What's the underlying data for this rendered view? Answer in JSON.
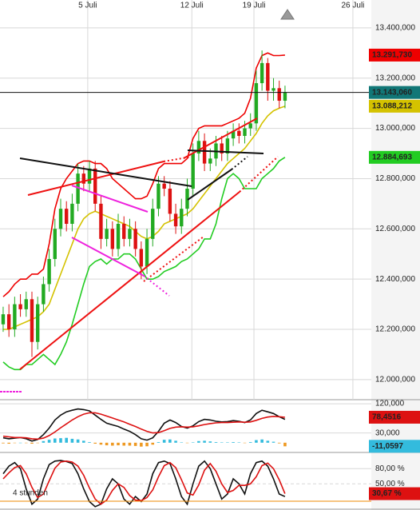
{
  "chart_data": [
    {
      "type": "candlestick",
      "xlim": [
        -0.55,
        64
      ],
      "xticks": [
        {
          "value": 14.7,
          "label": "5 Juli"
        },
        {
          "value": 32.8,
          "label": "12 Juli"
        },
        {
          "value": 43.6,
          "label": "19 Juli"
        },
        {
          "value": 60.8,
          "label": "26 Juli"
        }
      ],
      "ylim": [
        11920,
        13511
      ],
      "yticks": [
        {
          "value": 12000,
          "label": "12.000,000"
        },
        {
          "value": 12200,
          "label": "12.200,000"
        },
        {
          "value": 12400,
          "label": "12.400,000"
        },
        {
          "value": 12600,
          "label": "12.600,000"
        },
        {
          "value": 12800,
          "label": "12.800,000"
        },
        {
          "value": 13000,
          "label": "13.000,000"
        },
        {
          "value": 13200,
          "label": "13.200,000"
        },
        {
          "value": 13400,
          "label": "13.400,000"
        }
      ],
      "grid": true,
      "up_color": "#22aa22",
      "down_color": "#dd1111",
      "open": [
        12220,
        12260,
        12200,
        12300,
        12280,
        12320,
        12150,
        12300,
        12380,
        12480,
        12600,
        12680,
        12620,
        12700,
        12820,
        12780,
        12840,
        12700,
        12560,
        12600,
        12520,
        12620,
        12560,
        12600,
        12520,
        12450,
        12560,
        12680,
        12780,
        12760,
        12660,
        12610,
        12680,
        12760,
        12900,
        12950,
        12860,
        12880,
        12940,
        12900,
        12960,
        12990,
        12970,
        13000,
        13020,
        13180,
        13260,
        13150,
        13160,
        13110
      ],
      "high": [
        12290,
        12300,
        12330,
        12340,
        12350,
        12350,
        12330,
        12410,
        12520,
        12640,
        12720,
        12710,
        12740,
        12860,
        12850,
        12870,
        12870,
        12730,
        12640,
        12630,
        12660,
        12650,
        12640,
        12630,
        12550,
        12600,
        12720,
        12810,
        12810,
        12790,
        12700,
        12720,
        12800,
        12940,
        12990,
        12980,
        12920,
        12970,
        12970,
        12990,
        13020,
        13020,
        13030,
        13060,
        13230,
        13310,
        13280,
        13200,
        13190,
        13170
      ],
      "low": [
        12190,
        12170,
        12170,
        12250,
        12250,
        12090,
        12120,
        12270,
        12350,
        12450,
        12570,
        12590,
        12590,
        12670,
        12750,
        12750,
        12670,
        12520,
        12530,
        12490,
        12490,
        12530,
        12530,
        12490,
        12400,
        12420,
        12530,
        12650,
        12730,
        12630,
        12580,
        12580,
        12650,
        12730,
        12870,
        12830,
        12830,
        12850,
        12870,
        12870,
        12930,
        12940,
        12940,
        12970,
        12990,
        13150,
        13110,
        13110,
        13080,
        13080
      ],
      "close": [
        12260,
        12200,
        12300,
        12280,
        12320,
        12150,
        12300,
        12380,
        12480,
        12600,
        12680,
        12620,
        12700,
        12820,
        12780,
        12840,
        12700,
        12560,
        12600,
        12520,
        12620,
        12560,
        12600,
        12520,
        12450,
        12560,
        12680,
        12780,
        12760,
        12660,
        12610,
        12680,
        12760,
        12900,
        12950,
        12860,
        12880,
        12940,
        12900,
        12960,
        12990,
        12970,
        13000,
        13020,
        13180,
        13260,
        13150,
        13160,
        13110,
        13143.06
      ],
      "last_label": "13.143,060",
      "last_color": "#117777",
      "series": [
        {
          "color": "#ee0000",
          "last_label": "13.291,730",
          "values": [
            12330,
            12350,
            12380,
            12400,
            12400,
            12420,
            12420,
            12440,
            12540,
            12680,
            12760,
            12800,
            12830,
            12860,
            12870,
            12870,
            12860,
            12860,
            12840,
            12800,
            12780,
            12760,
            12740,
            12720,
            12720,
            12730,
            12780,
            12840,
            12860,
            12860,
            12860,
            12860,
            12880,
            12960,
            13000,
            13010,
            13010,
            13010,
            13010,
            13020,
            13030,
            13040,
            13060,
            13120,
            13240,
            13290,
            13300,
            13290,
            13290,
            13291.73
          ]
        },
        {
          "color": "#d4c200",
          "last_label": "13.088,212",
          "values": [
            12200,
            12200,
            12210,
            12220,
            12230,
            12240,
            12250,
            12270,
            12300,
            12360,
            12420,
            12480,
            12540,
            12600,
            12640,
            12660,
            12670,
            12660,
            12650,
            12640,
            12630,
            12620,
            12610,
            12590,
            12570,
            12560,
            12570,
            12590,
            12620,
            12630,
            12640,
            12650,
            12660,
            12680,
            12710,
            12740,
            12770,
            12800,
            12830,
            12860,
            12880,
            12900,
            12920,
            12950,
            12980,
            13020,
            13050,
            13070,
            13080,
            13088.212
          ]
        },
        {
          "color": "#22cc22",
          "last_label": "12.884,693",
          "values": [
            12070,
            12050,
            12040,
            12040,
            12060,
            12060,
            12080,
            12100,
            12080,
            12060,
            12100,
            12150,
            12220,
            12300,
            12380,
            12450,
            12470,
            12480,
            12460,
            12480,
            12480,
            12500,
            12500,
            12480,
            12440,
            12400,
            12400,
            12410,
            12430,
            12440,
            12450,
            12470,
            12480,
            12500,
            12520,
            12560,
            12560,
            12620,
            12720,
            12800,
            12820,
            12800,
            12760,
            12760,
            12760,
            12800,
            12820,
            12840,
            12870,
            12884.693
          ]
        }
      ]
    },
    {
      "type": "macd",
      "ylim": [
        -30,
        132.5
      ],
      "yticks": [
        {
          "value": 120,
          "label": "120,000"
        },
        {
          "value": 30,
          "label": "30,000"
        }
      ],
      "series": [
        {
          "color": "#111111",
          "values": [
            15,
            12,
            14,
            16,
            12,
            5,
            10,
            25,
            45,
            70,
            85,
            95,
            100,
            104,
            102,
            98,
            85,
            72,
            60,
            55,
            50,
            42,
            35,
            25,
            12,
            8,
            15,
            35,
            60,
            70,
            62,
            50,
            45,
            52,
            65,
            72,
            70,
            66,
            64,
            65,
            68,
            66,
            62,
            70,
            90,
            100,
            95,
            90,
            80,
            72
          ]
        },
        {
          "color": "#dd1111",
          "last_label": "78,4516",
          "values": [
            20,
            18,
            16,
            16,
            15,
            12,
            11,
            14,
            22,
            33,
            46,
            58,
            70,
            80,
            88,
            92,
            92,
            88,
            82,
            76,
            70,
            64,
            57,
            50,
            42,
            35,
            30,
            31,
            37,
            44,
            48,
            49,
            48,
            49,
            52,
            56,
            59,
            61,
            62,
            62,
            63,
            64,
            63,
            64,
            69,
            75,
            79,
            81,
            80,
            78.4516
          ]
        }
      ],
      "histogram": {
        "up_color": "#33bbdd",
        "down_color": "#ee9922",
        "last_label": "-11,0597",
        "values": [
          -2,
          -3,
          -1,
          0,
          -1,
          -3,
          -1,
          5,
          9,
          13,
          14,
          15,
          12,
          10,
          6,
          2,
          -3,
          -6,
          -8,
          -9,
          -8,
          -9,
          -9,
          -10,
          -12,
          -11,
          -6,
          2,
          9,
          10,
          6,
          1,
          -1,
          1,
          5,
          6,
          4,
          2,
          1,
          1,
          2,
          1,
          -1,
          2,
          8,
          10,
          6,
          3,
          -2,
          -11.0597
        ]
      }
    },
    {
      "type": "stochastic",
      "ylim": [
        0,
        112
      ],
      "yticks": [
        {
          "value": 80,
          "label": "80,00 %"
        },
        {
          "value": 50,
          "label": "50,00 %"
        }
      ],
      "annotation": "4 stunden",
      "series": [
        {
          "color": "#111111",
          "values": [
            70,
            85,
            92,
            80,
            40,
            10,
            20,
            60,
            88,
            95,
            96,
            94,
            90,
            70,
            40,
            15,
            5,
            10,
            40,
            60,
            50,
            20,
            10,
            25,
            15,
            30,
            70,
            92,
            95,
            90,
            60,
            25,
            10,
            50,
            85,
            95,
            80,
            50,
            20,
            30,
            60,
            50,
            30,
            70,
            92,
            95,
            85,
            60,
            30,
            25
          ]
        },
        {
          "color": "#dd1111",
          "last_label": "30,67 %",
          "values": [
            60,
            72,
            82,
            86,
            70,
            43,
            23,
            30,
            56,
            81,
            93,
            95,
            93,
            85,
            67,
            42,
            20,
            10,
            18,
            37,
            50,
            43,
            27,
            18,
            17,
            23,
            38,
            64,
            86,
            92,
            82,
            58,
            32,
            28,
            48,
            77,
            90,
            75,
            50,
            33,
            37,
            47,
            47,
            50,
            64,
            86,
            91,
            80,
            58,
            30.67
          ]
        }
      ]
    }
  ]
}
